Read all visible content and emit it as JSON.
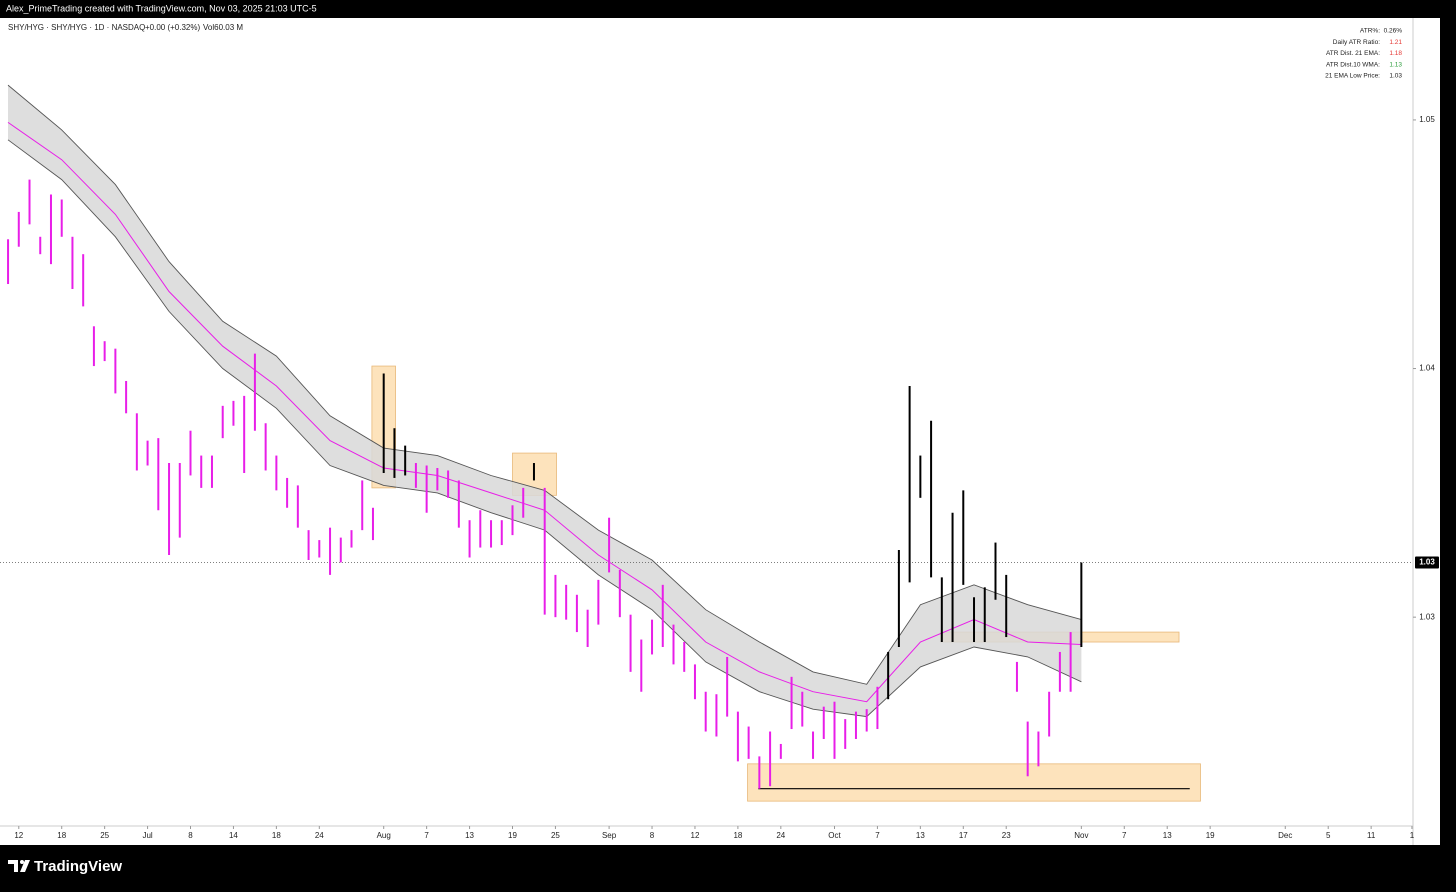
{
  "chart_data": {
    "type": "ohlc",
    "header": "Alex_PrimeTrading created with TradingView.com, Nov 03, 2025 21:03 UTC-5",
    "title": "SHY/HYG · SHY/HYG · 1D · NASDAQ",
    "change": "+0.00 (+0.32%)",
    "volume": "Vol60.03 M",
    "footer": "TradingView",
    "stats": [
      {
        "label": "ATR%:",
        "value": "0.26%",
        "color": "#222222"
      },
      {
        "label": "Daily ATR Ratio:",
        "value": "1.21",
        "color": "#e53935"
      },
      {
        "label": "ATR Dist. 21 EMA:",
        "value": "1.18",
        "color": "#e53935"
      },
      {
        "label": "ATR Dist.10 WMA:",
        "value": "1.13",
        "color": "#2e9e3e"
      },
      {
        "label": "21 EMA Low Price:",
        "value": "1.03",
        "color": "#222222"
      }
    ],
    "x": [
      -1,
      0,
      1,
      2,
      3,
      4,
      5,
      6,
      7,
      8,
      9,
      10,
      11,
      12,
      13,
      14,
      15,
      16,
      17,
      18,
      19,
      20,
      21,
      22,
      23,
      24,
      25,
      26,
      27,
      28,
      29,
      30,
      31,
      32,
      33,
      34,
      35,
      36,
      37,
      38,
      39,
      40,
      41,
      42,
      43,
      44,
      45,
      46,
      47,
      48,
      49,
      50,
      51,
      52,
      53,
      54,
      55,
      56,
      57,
      58,
      59,
      60,
      61,
      62,
      63,
      64,
      65,
      66,
      67,
      68,
      69,
      70,
      71,
      72,
      73,
      74,
      75,
      76,
      77,
      78,
      79,
      80,
      81,
      82,
      83,
      84,
      85,
      86,
      87,
      88,
      89,
      90,
      91,
      92,
      93,
      94,
      95,
      96,
      97,
      98,
      99
    ],
    "high": [
      1.0452,
      1.0463,
      1.0476,
      1.0453,
      1.047,
      1.0468,
      1.0453,
      1.0446,
      1.0417,
      1.0411,
      1.0408,
      1.0395,
      1.0382,
      1.0371,
      1.0372,
      1.0362,
      1.0362,
      1.0375,
      1.0365,
      1.0365,
      1.0385,
      1.0387,
      1.0389,
      1.0406,
      1.0378,
      1.0365,
      1.0356,
      1.0353,
      1.0335,
      1.0331,
      1.0336,
      1.0332,
      1.0335,
      1.0355,
      1.0344,
      1.0398,
      1.0376,
      1.0369,
      1.0362,
      1.0361,
      1.036,
      1.0359,
      1.0355,
      1.0339,
      1.0343,
      1.0339,
      1.0339,
      1.0345,
      1.0352,
      1.0362,
      1.0352,
      1.0317,
      1.0313,
      1.0309,
      1.0303,
      1.0315,
      1.034,
      1.0319,
      1.0301,
      1.0291,
      1.0299,
      1.0313,
      1.0297,
      1.029,
      1.0281,
      1.027,
      1.0269,
      1.0284,
      1.0262,
      1.0256,
      1.0244,
      1.0254,
      1.0249,
      1.0276,
      1.027,
      1.0254,
      1.0264,
      1.0266,
      1.0259,
      1.0262,
      1.0263,
      1.0272,
      1.0286,
      1.0327,
      1.0393,
      1.0365,
      1.0379,
      1.0316,
      1.0342,
      1.0351,
      1.0308,
      1.0312,
      1.033,
      1.0317,
      1.0282,
      1.0258,
      1.0254,
      1.027,
      1.0286,
      1.0294,
      1.0322
    ],
    "low": [
      1.0434,
      1.0449,
      1.0458,
      1.0446,
      1.0442,
      1.0453,
      1.0432,
      1.0425,
      1.0401,
      1.0403,
      1.039,
      1.0382,
      1.0359,
      1.0361,
      1.0343,
      1.0325,
      1.0332,
      1.0357,
      1.0352,
      1.0352,
      1.0372,
      1.0377,
      1.0358,
      1.0375,
      1.0359,
      1.0351,
      1.0344,
      1.0336,
      1.0323,
      1.0324,
      1.0317,
      1.0322,
      1.0328,
      1.0335,
      1.0331,
      1.0358,
      1.0356,
      1.0357,
      1.0352,
      1.0342,
      1.0351,
      1.0348,
      1.0336,
      1.0324,
      1.0328,
      1.0328,
      1.0329,
      1.0333,
      1.034,
      1.0355,
      1.0301,
      1.03,
      1.0299,
      1.0294,
      1.0288,
      1.0297,
      1.0318,
      1.03,
      1.0278,
      1.027,
      1.0285,
      1.0288,
      1.0281,
      1.0278,
      1.0267,
      1.0254,
      1.0252,
      1.026,
      1.0242,
      1.0243,
      1.0231,
      1.0232,
      1.0243,
      1.0255,
      1.0256,
      1.0243,
      1.0251,
      1.0243,
      1.0247,
      1.0251,
      1.0254,
      1.0255,
      1.0267,
      1.0288,
      1.0314,
      1.0348,
      1.0316,
      1.029,
      1.029,
      1.0313,
      1.029,
      1.029,
      1.0307,
      1.0292,
      1.027,
      1.0236,
      1.024,
      1.0252,
      1.027,
      1.027,
      1.0288
    ],
    "colors": [
      "#e81ee8",
      "#e81ee8",
      "#e81ee8",
      "#e81ee8",
      "#e81ee8",
      "#e81ee8",
      "#e81ee8",
      "#e81ee8",
      "#e81ee8",
      "#e81ee8",
      "#e81ee8",
      "#e81ee8",
      "#e81ee8",
      "#e81ee8",
      "#e81ee8",
      "#e81ee8",
      "#e81ee8",
      "#e81ee8",
      "#e81ee8",
      "#e81ee8",
      "#e81ee8",
      "#e81ee8",
      "#e81ee8",
      "#e81ee8",
      "#e81ee8",
      "#e81ee8",
      "#e81ee8",
      "#e81ee8",
      "#e81ee8",
      "#e81ee8",
      "#e81ee8",
      "#e81ee8",
      "#e81ee8",
      "#e81ee8",
      "#e81ee8",
      "#000000",
      "#000000",
      "#000000",
      "#e81ee8",
      "#e81ee8",
      "#e81ee8",
      "#e81ee8",
      "#e81ee8",
      "#e81ee8",
      "#e81ee8",
      "#e81ee8",
      "#e81ee8",
      "#e81ee8",
      "#e81ee8",
      "#000000",
      "#e81ee8",
      "#e81ee8",
      "#e81ee8",
      "#e81ee8",
      "#e81ee8",
      "#e81ee8",
      "#e81ee8",
      "#e81ee8",
      "#e81ee8",
      "#e81ee8",
      "#e81ee8",
      "#e81ee8",
      "#e81ee8",
      "#e81ee8",
      "#e81ee8",
      "#e81ee8",
      "#e81ee8",
      "#e81ee8",
      "#e81ee8",
      "#e81ee8",
      "#e81ee8",
      "#e81ee8",
      "#e81ee8",
      "#e81ee8",
      "#e81ee8",
      "#e81ee8",
      "#e81ee8",
      "#e81ee8",
      "#e81ee8",
      "#e81ee8",
      "#e81ee8",
      "#e81ee8",
      "#000000",
      "#000000",
      "#000000",
      "#000000",
      "#000000",
      "#000000",
      "#000000",
      "#000000",
      "#000000",
      "#000000",
      "#000000",
      "#000000",
      "#e81ee8",
      "#e81ee8",
      "#e81ee8",
      "#e81ee8",
      "#e81ee8",
      "#e81ee8",
      "#000000"
    ],
    "band": {
      "x": [
        -1,
        4,
        9,
        14,
        19,
        24,
        29,
        34,
        39,
        44,
        49,
        54,
        59,
        64,
        69,
        74,
        79,
        84,
        89,
        94,
        99
      ],
      "upper": [
        1.0514,
        1.0496,
        1.0474,
        1.0443,
        1.0419,
        1.0405,
        1.0381,
        1.0368,
        1.0365,
        1.0357,
        1.0351,
        1.0335,
        1.0323,
        1.0303,
        1.029,
        1.0278,
        1.0273,
        1.0305,
        1.0313,
        1.0305,
        1.0299
      ],
      "ema": [
        1.0499,
        1.0484,
        1.0462,
        1.0431,
        1.0409,
        1.0393,
        1.0371,
        1.036,
        1.0357,
        1.035,
        1.0343,
        1.0325,
        1.0311,
        1.029,
        1.0278,
        1.027,
        1.0266,
        1.029,
        1.0299,
        1.029,
        1.0289
      ],
      "lower": [
        1.0492,
        1.0476,
        1.0453,
        1.0423,
        1.04,
        1.0384,
        1.0361,
        1.0353,
        1.035,
        1.0342,
        1.0335,
        1.0317,
        1.0303,
        1.0282,
        1.027,
        1.0263,
        1.026,
        1.028,
        1.0288,
        1.0284,
        1.0274
      ],
      "ema_color": "#e81ee8",
      "fill": "#d8d8d8",
      "edge_color": "#555555"
    },
    "zones": [
      {
        "x": [
          32.9,
          35.1
        ],
        "y": [
          1.0352,
          1.0401
        ]
      },
      {
        "x": [
          46.0,
          50.1
        ],
        "y": [
          1.0349,
          1.0366
        ]
      },
      {
        "x": [
          85.9,
          108.1
        ],
        "y": [
          1.029,
          1.0294
        ]
      },
      {
        "x": [
          67.9,
          110.1
        ],
        "y": [
          1.0226,
          1.0241
        ]
      }
    ],
    "zone_color": "#fcd9a6",
    "support": {
      "x": [
        68.9,
        109.1
      ],
      "value": 1.0231
    },
    "last_price": {
      "value": 1.0322,
      "label": "1.03"
    },
    "xlim": [
      -1.75,
      129.9
    ],
    "ylim": [
      1.0216,
      1.0541
    ],
    "xticks": [
      {
        "value": 0,
        "label": "12"
      },
      {
        "value": 4,
        "label": "18"
      },
      {
        "value": 8,
        "label": "25"
      },
      {
        "value": 12,
        "label": "Jul"
      },
      {
        "value": 16,
        "label": "8"
      },
      {
        "value": 20,
        "label": "14"
      },
      {
        "value": 24,
        "label": "18"
      },
      {
        "value": 28,
        "label": "24"
      },
      {
        "value": 34,
        "label": "Aug"
      },
      {
        "value": 38,
        "label": "7"
      },
      {
        "value": 42,
        "label": "13"
      },
      {
        "value": 46,
        "label": "19"
      },
      {
        "value": 50,
        "label": "25"
      },
      {
        "value": 55,
        "label": "Sep"
      },
      {
        "value": 59,
        "label": "8"
      },
      {
        "value": 63,
        "label": "12"
      },
      {
        "value": 67,
        "label": "18"
      },
      {
        "value": 71,
        "label": "24"
      },
      {
        "value": 76,
        "label": "Oct"
      },
      {
        "value": 80,
        "label": "7"
      },
      {
        "value": 84,
        "label": "13"
      },
      {
        "value": 88,
        "label": "17"
      },
      {
        "value": 92,
        "label": "23"
      },
      {
        "value": 99,
        "label": "Nov"
      },
      {
        "value": 103,
        "label": "7"
      },
      {
        "value": 107,
        "label": "13"
      },
      {
        "value": 111,
        "label": "19"
      },
      {
        "value": 118,
        "label": "Dec"
      },
      {
        "value": 122,
        "label": "5"
      },
      {
        "value": 126,
        "label": "11"
      },
      {
        "value": 129.8,
        "label": "1"
      }
    ],
    "yticks": [
      1.03,
      1.04,
      1.05
    ]
  }
}
